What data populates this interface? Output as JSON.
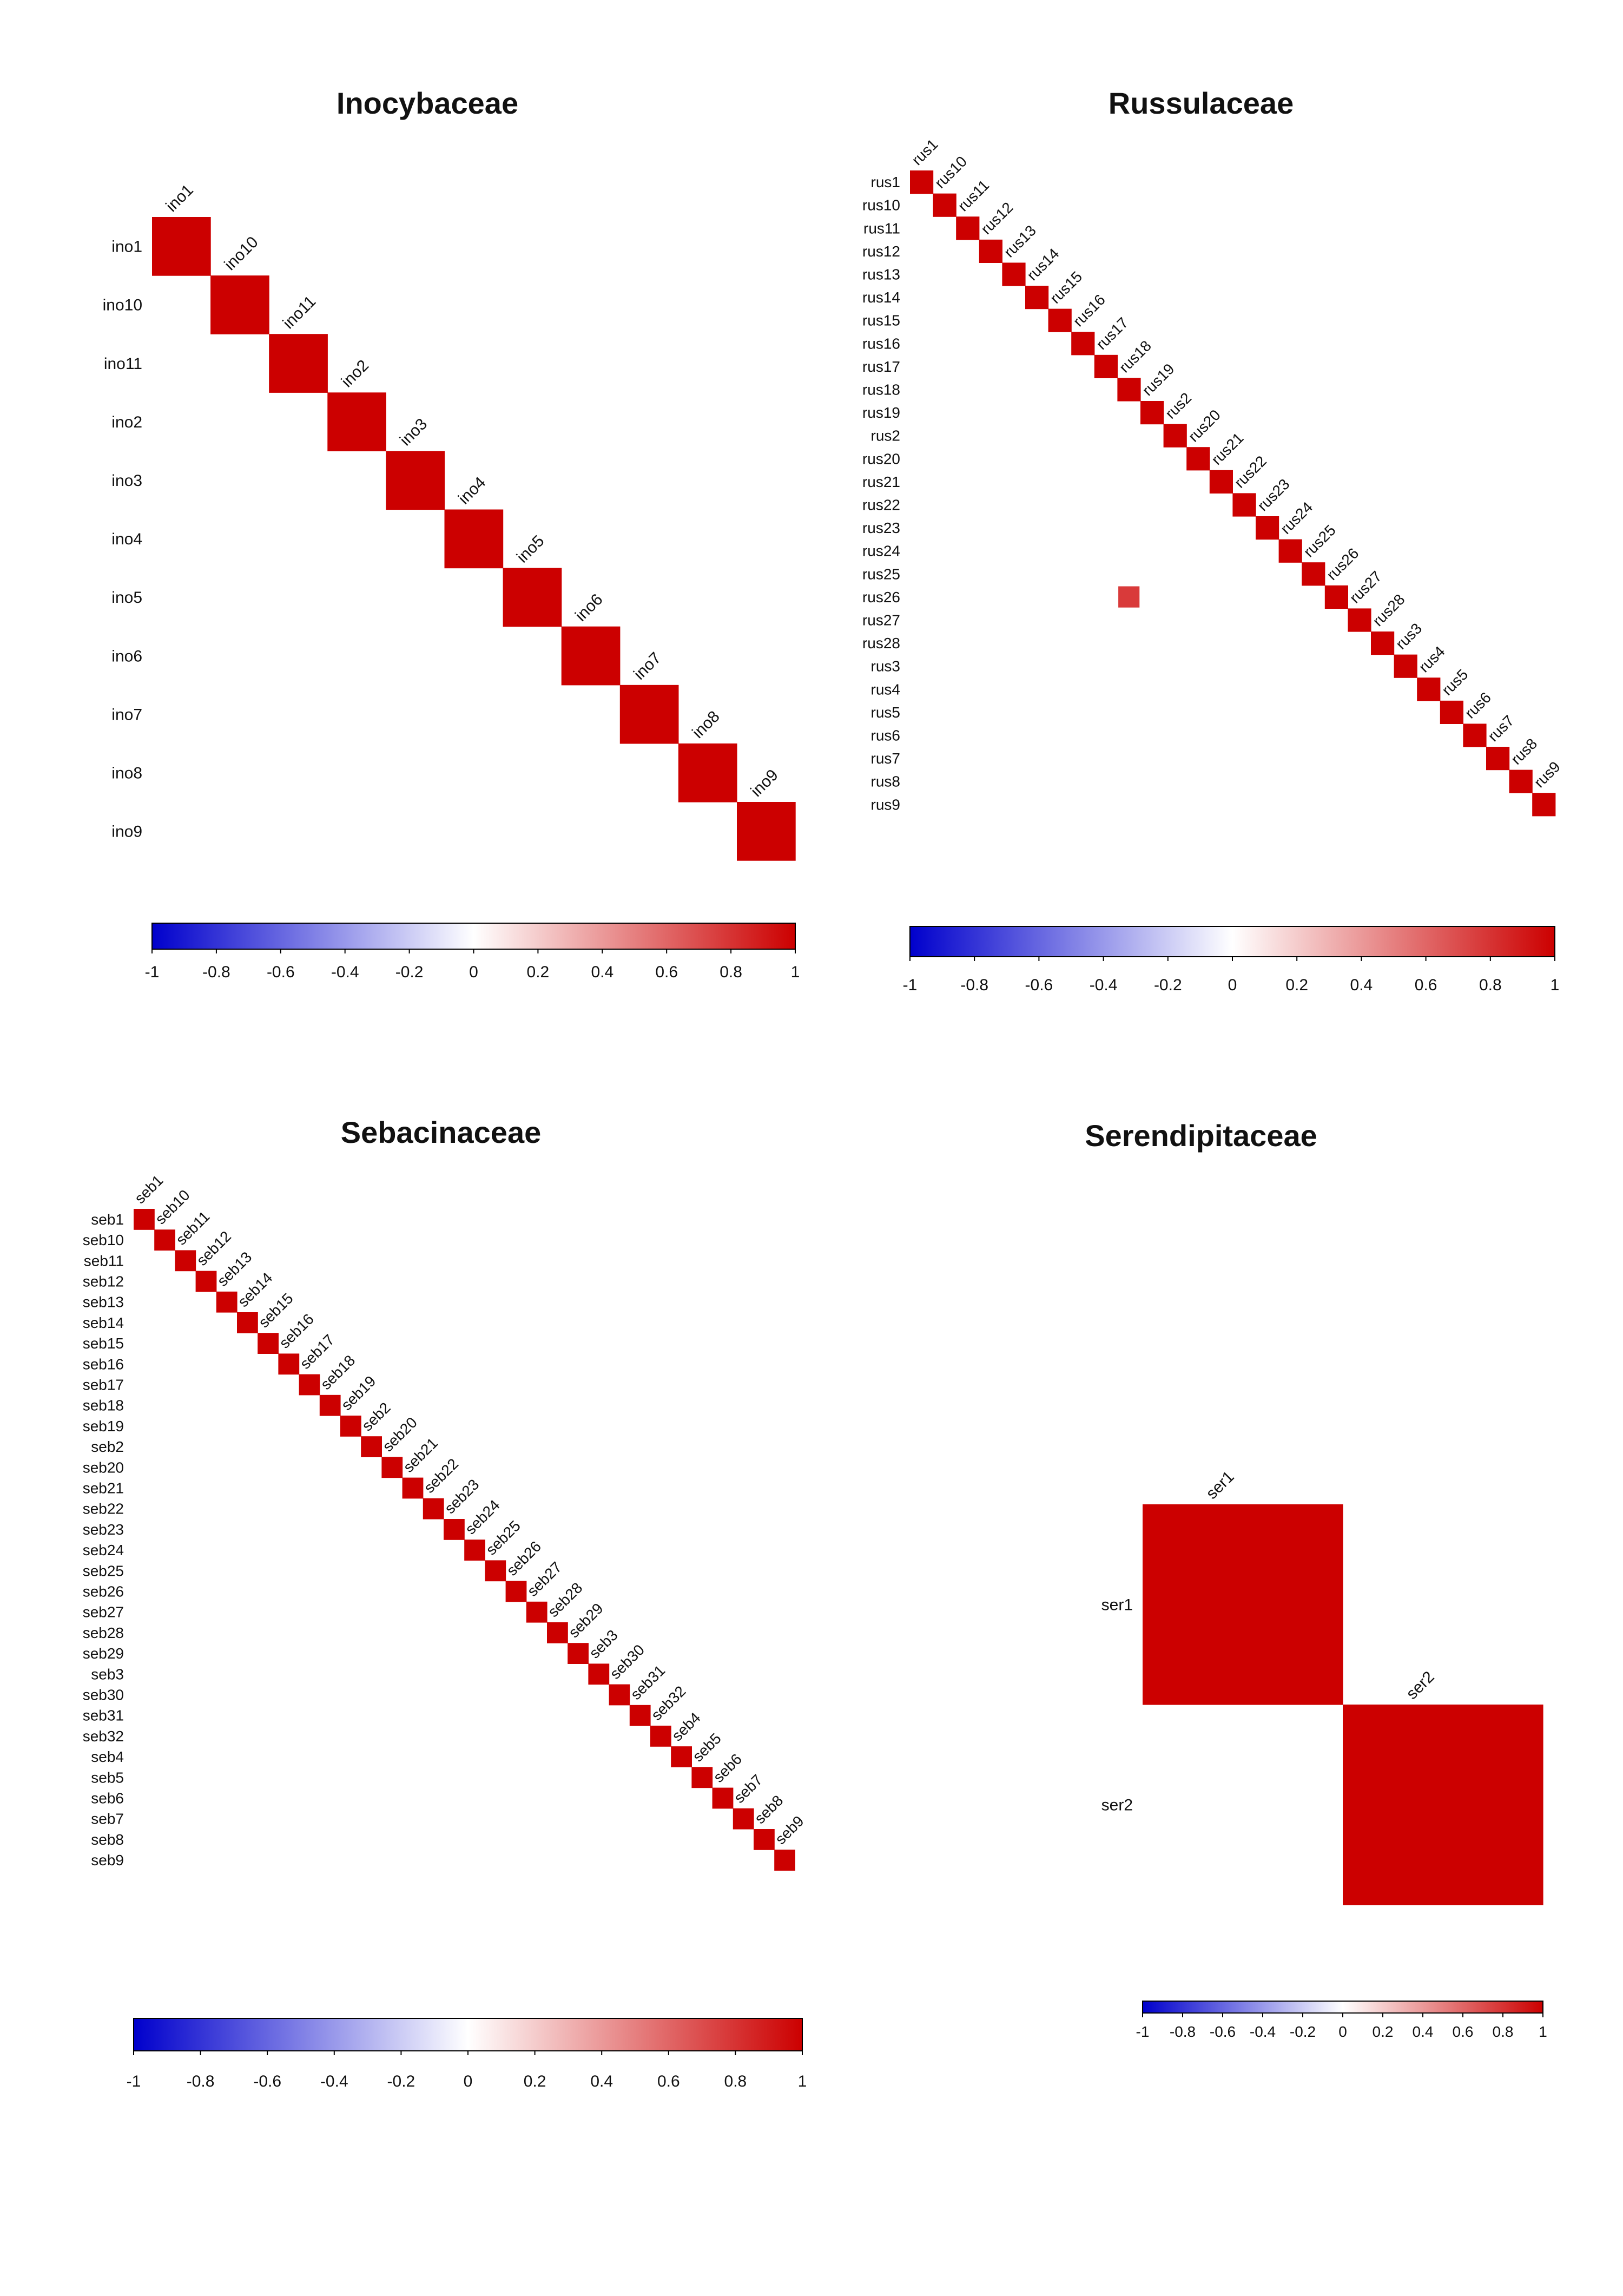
{
  "colors": {
    "negative": "#0000CC",
    "neutral": "#FFFFFF",
    "positive": "#CC0000",
    "diagonal": "#CC0000",
    "off_diagonal_rus26_rus18": "#D93A3A",
    "background": "#FFFFFF",
    "text": "#111111"
  },
  "chart_data": [
    {
      "type": "heatmap",
      "subtype": "correlation-matrix-lower-triangle",
      "title": "Inocybaceae",
      "labels": [
        "ino1",
        "ino10",
        "ino11",
        "ino2",
        "ino3",
        "ino4",
        "ino5",
        "ino6",
        "ino7",
        "ino8",
        "ino9"
      ],
      "values": "identity",
      "cells": [],
      "colorbar": {
        "range": [
          -1,
          1
        ],
        "ticks": [
          "-1",
          "-0.8",
          "-0.6",
          "-0.4",
          "-0.2",
          "0",
          "0.2",
          "0.4",
          "0.6",
          "0.8",
          "1"
        ]
      }
    },
    {
      "type": "heatmap",
      "subtype": "correlation-matrix-lower-triangle",
      "title": "Russulaceae",
      "labels": [
        "rus1",
        "rus10",
        "rus11",
        "rus12",
        "rus13",
        "rus14",
        "rus15",
        "rus16",
        "rus17",
        "rus18",
        "rus19",
        "rus2",
        "rus20",
        "rus21",
        "rus22",
        "rus23",
        "rus24",
        "rus25",
        "rus26",
        "rus27",
        "rus28",
        "rus3",
        "rus4",
        "rus5",
        "rus6",
        "rus7",
        "rus8",
        "rus9"
      ],
      "values": "identity",
      "cells": [
        {
          "row": "rus26",
          "col": "rus18",
          "value": 0.8
        }
      ],
      "colorbar": {
        "range": [
          -1,
          1
        ],
        "ticks": [
          "-1",
          "-0.8",
          "-0.6",
          "-0.4",
          "-0.2",
          "0",
          "0.2",
          "0.4",
          "0.6",
          "0.8",
          "1"
        ]
      }
    },
    {
      "type": "heatmap",
      "subtype": "correlation-matrix-lower-triangle",
      "title": "Sebacinaceae",
      "labels": [
        "seb1",
        "seb10",
        "seb11",
        "seb12",
        "seb13",
        "seb14",
        "seb15",
        "seb16",
        "seb17",
        "seb18",
        "seb19",
        "seb2",
        "seb20",
        "seb21",
        "seb22",
        "seb23",
        "seb24",
        "seb25",
        "seb26",
        "seb27",
        "seb28",
        "seb29",
        "seb3",
        "seb30",
        "seb31",
        "seb32",
        "seb4",
        "seb5",
        "seb6",
        "seb7",
        "seb8",
        "seb9"
      ],
      "values": "identity",
      "cells": [],
      "colorbar": {
        "range": [
          -1,
          1
        ],
        "ticks": [
          "-1",
          "-0.8",
          "-0.6",
          "-0.4",
          "-0.2",
          "0",
          "0.2",
          "0.4",
          "0.6",
          "0.8",
          "1"
        ]
      }
    },
    {
      "type": "heatmap",
      "subtype": "correlation-matrix-lower-triangle",
      "title": "Serendipitaceae",
      "labels": [
        "ser1",
        "ser2"
      ],
      "values": "identity",
      "cells": [],
      "colorbar": {
        "range": [
          -1,
          1
        ],
        "ticks": [
          "-1",
          "-0.8",
          "-0.6",
          "-0.4",
          "-0.2",
          "0",
          "0.2",
          "0.4",
          "0.6",
          "0.8",
          "1"
        ]
      }
    }
  ]
}
